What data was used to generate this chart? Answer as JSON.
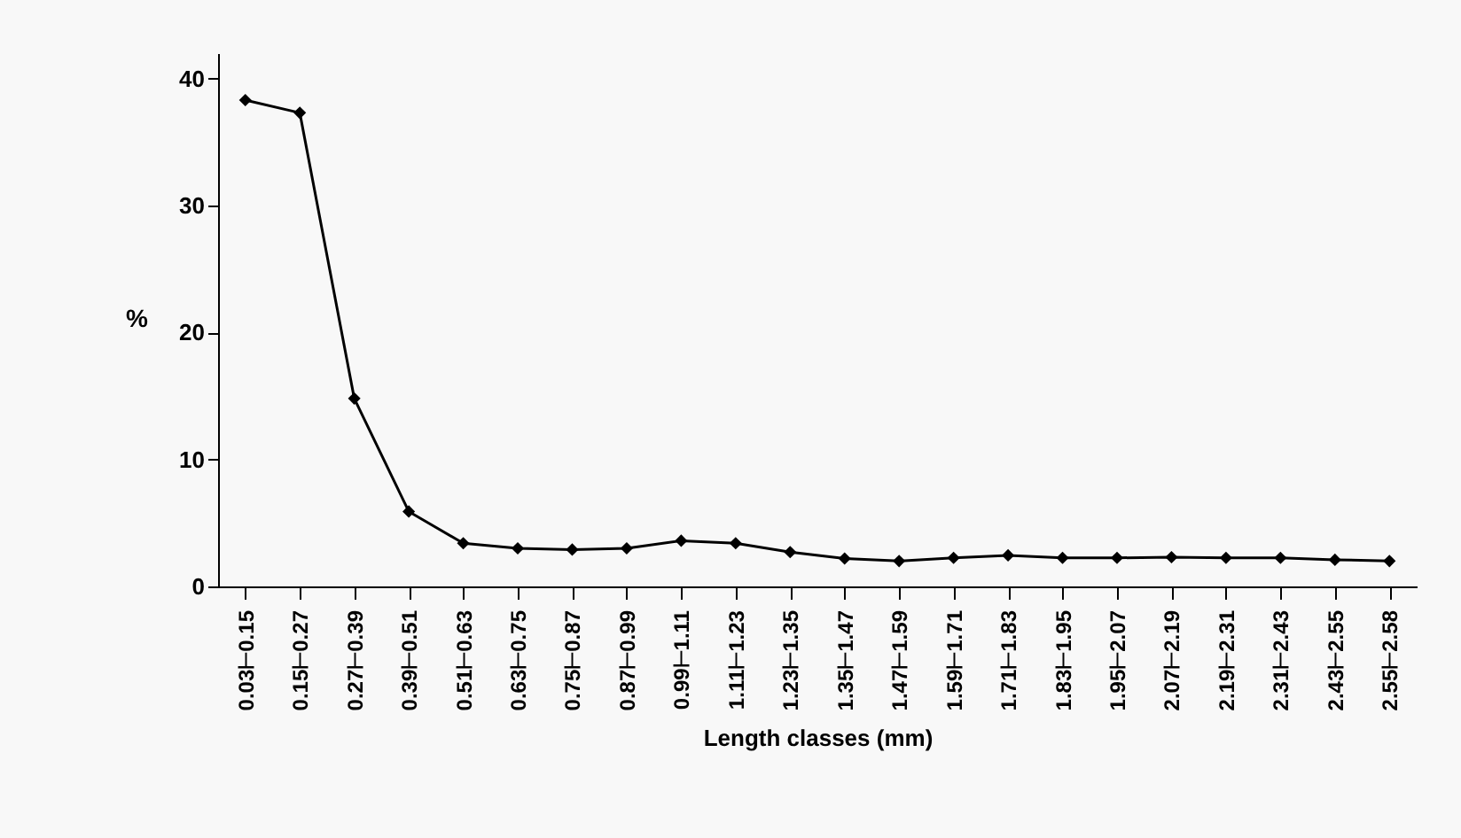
{
  "chart_data": {
    "type": "line",
    "xlabel": "Length classes (mm)",
    "ylabel": "%",
    "categories": [
      "0.03⊢0.15",
      "0.15⊢0.27",
      "0.27⊢0.39",
      "0.39⊢0.51",
      "0.51⊢0.63",
      "0.63⊢0.75",
      "0.75⊢0.87",
      "0.87⊢0.99",
      "0.99⊢1.11",
      "1.11⊢1.23",
      "1.23⊢1.35",
      "1.35⊢1.47",
      "1.47⊢1.59",
      "1.59⊢1.71",
      "1.71⊢1.83",
      "1.83⊢1.95",
      "1.95⊢2.07",
      "2.07⊢2.19",
      "2.19⊢2.31",
      "2.31⊢2.43",
      "2.43⊢2.55",
      "2.55⊢2.58"
    ],
    "series": [
      {
        "color": "#000000",
        "values": [
          38.3,
          37.3,
          14.8,
          5.9,
          3.4,
          3.0,
          2.9,
          3.0,
          3.6,
          3.4,
          2.7,
          2.2,
          2.0,
          2.25,
          2.45,
          2.25,
          2.25,
          2.3,
          2.25,
          2.25,
          2.1,
          2.0
        ]
      }
    ],
    "ylim": [
      0,
      42
    ],
    "yticks": [
      0,
      10,
      20,
      30,
      40
    ],
    "grid": false,
    "legend": false,
    "marker": "diamond",
    "line_style": "solid"
  }
}
